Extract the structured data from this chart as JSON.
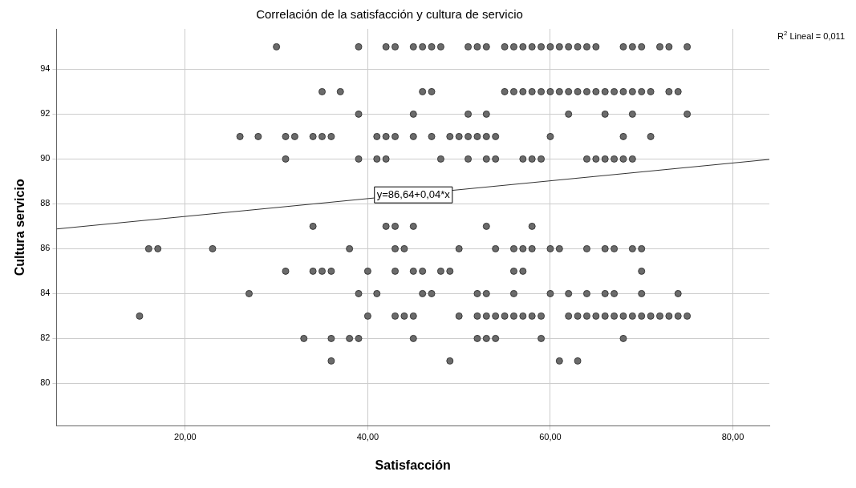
{
  "chart_data": {
    "type": "scatter",
    "title": "Correlación de la satisfacción y cultura de servicio",
    "xlabel": "Satisfacción",
    "ylabel": "Cultura servicio",
    "xlim": [
      5.9,
      84
    ],
    "ylim": [
      78.1,
      95.8
    ],
    "xticks": [
      {
        "value": 20,
        "label": "20,00"
      },
      {
        "value": 40,
        "label": "40,00"
      },
      {
        "value": 60,
        "label": "60,00"
      },
      {
        "value": 80,
        "label": "80,00"
      }
    ],
    "yticks": [
      80,
      82,
      84,
      86,
      88,
      90,
      92,
      94
    ],
    "grid": true,
    "legend": false,
    "marker": "circle",
    "annotations": [
      "R$^{2}$ Lineal = 0,011",
      {
        "text": "y=86,64+0,04*x",
        "x": 45,
        "y": 88.4
      }
    ],
    "series": [
      {
        "type": "scatter",
        "color": "#6b6b6b",
        "x": [
          30,
          39,
          42,
          43,
          45,
          46,
          47,
          48,
          51,
          52,
          53,
          55,
          56,
          57,
          58,
          59,
          60,
          61,
          62,
          63,
          64,
          65,
          68,
          69,
          70,
          72,
          73,
          75
        ],
        "values": [
          95,
          95,
          95,
          95,
          95,
          95,
          95,
          95,
          95,
          95,
          95,
          95,
          95,
          95,
          95,
          95,
          95,
          95,
          95,
          95,
          95,
          95,
          95,
          95,
          95,
          95,
          95,
          95
        ]
      },
      {
        "type": "scatter",
        "color": "#6b6b6b",
        "x": [
          35,
          37,
          46,
          47,
          55,
          56,
          57,
          58,
          59,
          60,
          61,
          62,
          63,
          64,
          65,
          66,
          67,
          68,
          69,
          70,
          71,
          73,
          74
        ],
        "values": [
          93,
          93,
          93,
          93,
          93,
          93,
          93,
          93,
          93,
          93,
          93,
          93,
          93,
          93,
          93,
          93,
          93,
          93,
          93,
          93,
          93,
          93,
          93
        ]
      },
      {
        "type": "scatter",
        "color": "#6b6b6b",
        "x": [
          39,
          45,
          51,
          53,
          62,
          66,
          69,
          75
        ],
        "values": [
          92,
          92,
          92,
          92,
          92,
          92,
          92,
          92
        ]
      },
      {
        "type": "scatter",
        "color": "#6b6b6b",
        "x": [
          26,
          28,
          31,
          32,
          34,
          35,
          36,
          41,
          42,
          43,
          45,
          47,
          49,
          50,
          51,
          52,
          53,
          54,
          60,
          68,
          71
        ],
        "values": [
          91,
          91,
          91,
          91,
          91,
          91,
          91,
          91,
          91,
          91,
          91,
          91,
          91,
          91,
          91,
          91,
          91,
          91,
          91,
          91,
          91
        ]
      },
      {
        "type": "scatter",
        "color": "#6b6b6b",
        "x": [
          31,
          39,
          41,
          42,
          48,
          51,
          53,
          54,
          57,
          58,
          59,
          64,
          65,
          66,
          67,
          68,
          69
        ],
        "values": [
          90,
          90,
          90,
          90,
          90,
          90,
          90,
          90,
          90,
          90,
          90,
          90,
          90,
          90,
          90,
          90,
          90
        ]
      },
      {
        "type": "scatter",
        "color": "#6b6b6b",
        "x": [
          34,
          42,
          43,
          45,
          53,
          58
        ],
        "values": [
          87,
          87,
          87,
          87,
          87,
          87
        ]
      },
      {
        "type": "scatter",
        "color": "#6b6b6b",
        "x": [
          16,
          17,
          23,
          38,
          43,
          44,
          50,
          54,
          56,
          57,
          58,
          60,
          61,
          64,
          66,
          67,
          69,
          70
        ],
        "values": [
          86,
          86,
          86,
          86,
          86,
          86,
          86,
          86,
          86,
          86,
          86,
          86,
          86,
          86,
          86,
          86,
          86,
          86
        ]
      },
      {
        "type": "scatter",
        "color": "#6b6b6b",
        "x": [
          31,
          34,
          35,
          36,
          40,
          43,
          45,
          46,
          48,
          49,
          56,
          57,
          70
        ],
        "values": [
          85,
          85,
          85,
          85,
          85,
          85,
          85,
          85,
          85,
          85,
          85,
          85,
          85
        ]
      },
      {
        "type": "scatter",
        "color": "#6b6b6b",
        "x": [
          27,
          39,
          41,
          46,
          47,
          52,
          53,
          56,
          60,
          62,
          64,
          66,
          67,
          70,
          74
        ],
        "values": [
          84,
          84,
          84,
          84,
          84,
          84,
          84,
          84,
          84,
          84,
          84,
          84,
          84,
          84,
          84
        ]
      },
      {
        "type": "scatter",
        "color": "#6b6b6b",
        "x": [
          15,
          40,
          43,
          44,
          45,
          50,
          52,
          53,
          54,
          55,
          56,
          57,
          58,
          59,
          62,
          63,
          64,
          65,
          66,
          67,
          68,
          69,
          70,
          71,
          72,
          73,
          74,
          75
        ],
        "values": [
          83,
          83,
          83,
          83,
          83,
          83,
          83,
          83,
          83,
          83,
          83,
          83,
          83,
          83,
          83,
          83,
          83,
          83,
          83,
          83,
          83,
          83,
          83,
          83,
          83,
          83,
          83,
          83
        ]
      },
      {
        "type": "scatter",
        "color": "#6b6b6b",
        "x": [
          33,
          36,
          38,
          39,
          45,
          52,
          53,
          54,
          59,
          68
        ],
        "values": [
          82,
          82,
          82,
          82,
          82,
          82,
          82,
          82,
          82,
          82
        ]
      },
      {
        "type": "scatter",
        "color": "#6b6b6b",
        "x": [
          36,
          49,
          61,
          63
        ],
        "values": [
          81,
          81,
          81,
          81
        ]
      },
      {
        "type": "line",
        "color": "#333333",
        "marker": "none",
        "x": [
          5.9,
          84
        ],
        "values": [
          86.88,
          89.98
        ]
      }
    ]
  }
}
